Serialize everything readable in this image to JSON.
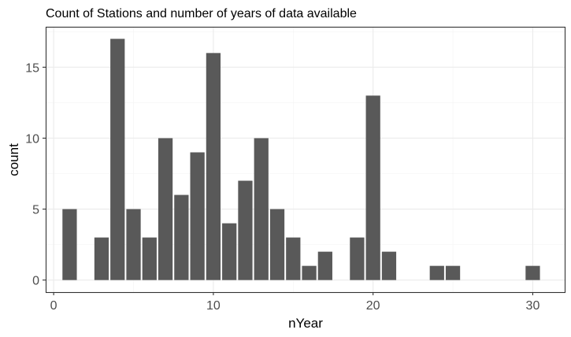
{
  "chart_data": {
    "type": "bar",
    "title": "Count of Stations and number of years of data available",
    "xlabel": "nYear",
    "ylabel": "count",
    "xlim": [
      -0.5,
      32
    ],
    "ylim": [
      -0.85,
      17.85
    ],
    "x_ticks": [
      0,
      10,
      20,
      30
    ],
    "y_ticks": [
      0,
      5,
      10,
      15
    ],
    "grid": true,
    "legend": "none",
    "bar_color": "#595959",
    "bars": [
      {
        "x": 1,
        "count": 5
      },
      {
        "x": 3,
        "count": 3
      },
      {
        "x": 4,
        "count": 17
      },
      {
        "x": 5,
        "count": 5
      },
      {
        "x": 6,
        "count": 3
      },
      {
        "x": 7,
        "count": 10
      },
      {
        "x": 8,
        "count": 6
      },
      {
        "x": 9,
        "count": 9
      },
      {
        "x": 10,
        "count": 16
      },
      {
        "x": 11,
        "count": 4
      },
      {
        "x": 12,
        "count": 7
      },
      {
        "x": 13,
        "count": 10
      },
      {
        "x": 14,
        "count": 5
      },
      {
        "x": 15,
        "count": 3
      },
      {
        "x": 16,
        "count": 1
      },
      {
        "x": 17,
        "count": 2
      },
      {
        "x": 19,
        "count": 3
      },
      {
        "x": 20,
        "count": 13
      },
      {
        "x": 21,
        "count": 2
      },
      {
        "x": 24,
        "count": 1
      },
      {
        "x": 25,
        "count": 1
      },
      {
        "x": 30,
        "count": 1
      }
    ]
  }
}
